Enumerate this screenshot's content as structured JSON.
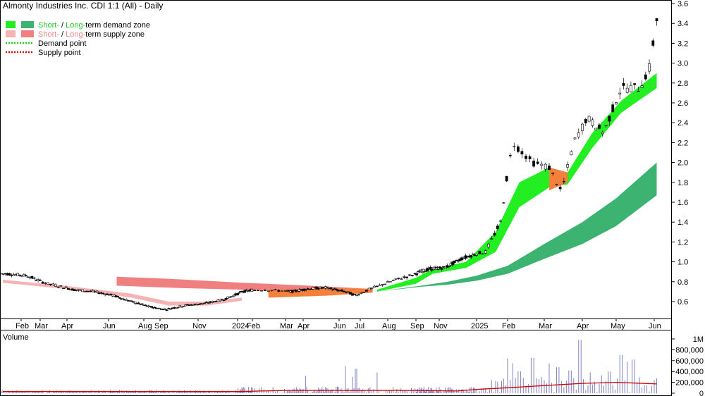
{
  "chart_data": {
    "type": "candlestick",
    "title": "Almonty Industries Inc. CDI 1:1 (All) - Daily",
    "legend": {
      "demand_zone": {
        "short": "Short-",
        "sep": " / ",
        "long": "Long-",
        "rest": "term demand zone"
      },
      "supply_zone": {
        "short": "Short-",
        "sep": " / ",
        "long": "Long-",
        "rest": "term supply zone"
      },
      "demand_point": "Demand point",
      "supply_point": "Supply point"
    },
    "colors": {
      "short_demand": "#22ee22",
      "long_demand": "#3cb371",
      "short_supply": "#f7b3b3",
      "long_supply": "#f08080",
      "transition": "#f5803c",
      "volume_bar": "#8080c0",
      "volume_ma": "#cc0000",
      "label_green": "#22cc22",
      "label_pink": "#ee8888",
      "volume_label": "#7070a0"
    },
    "price_axis": {
      "ticks": [
        "0.6",
        "0.8",
        "1.0",
        "1.2",
        "1.4",
        "1.6",
        "1.8",
        "2.0",
        "2.2",
        "2.4",
        "2.6",
        "2.8",
        "3.0",
        "3.2",
        "3.4",
        "3.6"
      ],
      "ylim": [
        0.45,
        3.6
      ]
    },
    "volume_axis": {
      "label": "Volume",
      "ticks": [
        "0",
        "200,000",
        "400,000",
        "600,000",
        "800,000",
        "1M"
      ],
      "ylim": [
        0,
        1000000
      ]
    },
    "x_labels": [
      "Feb",
      "Mar",
      "Apr",
      "Jun",
      "Aug",
      "Sep",
      "Nov",
      "2024",
      "Feb",
      "Mar",
      "Apr",
      "Jun",
      "Jul",
      "Aug",
      "Sep",
      "Nov",
      "2025",
      "Feb",
      "Mar",
      "Apr",
      "May",
      "Jun"
    ],
    "anchors": {
      "d": [
        "2023-02-01",
        "2023-03-01",
        "2023-04-01",
        "2023-06-01",
        "2023-08-01",
        "2023-09-01",
        "2023-11-01",
        "2024-01-01",
        "2024-02-01",
        "2024-03-01",
        "2024-04-01",
        "2024-06-01",
        "2024-07-01",
        "2024-08-01",
        "2024-09-01",
        "2024-11-01",
        "2025-01-01",
        "2025-02-01",
        "2025-03-01",
        "2025-04-01",
        "2025-05-01",
        "2025-06-01"
      ]
    },
    "price_key": [
      [
        "2023-01-10",
        0.88
      ],
      [
        "2023-02-10",
        0.86
      ],
      [
        "2023-03-10",
        0.78
      ],
      [
        "2023-04-10",
        0.72
      ],
      [
        "2023-05-10",
        0.7
      ],
      [
        "2023-06-10",
        0.66
      ],
      [
        "2023-07-10",
        0.6
      ],
      [
        "2023-08-10",
        0.55
      ],
      [
        "2023-09-10",
        0.52
      ],
      [
        "2023-10-10",
        0.56
      ],
      [
        "2023-11-10",
        0.58
      ],
      [
        "2023-12-10",
        0.62
      ],
      [
        "2024-01-10",
        0.7
      ],
      [
        "2024-02-10",
        0.72
      ],
      [
        "2024-03-10",
        0.7
      ],
      [
        "2024-04-10",
        0.73
      ],
      [
        "2024-05-10",
        0.74
      ],
      [
        "2024-06-10",
        0.7
      ],
      [
        "2024-06-25",
        0.66
      ],
      [
        "2024-07-10",
        0.72
      ],
      [
        "2024-08-10",
        0.82
      ],
      [
        "2024-09-10",
        0.9
      ],
      [
        "2024-10-10",
        0.93
      ],
      [
        "2024-11-10",
        0.94
      ],
      [
        "2024-12-10",
        1.04
      ],
      [
        "2025-01-10",
        1.1
      ],
      [
        "2025-01-25",
        1.4
      ],
      [
        "2025-02-05",
        2.2
      ],
      [
        "2025-02-20",
        2.0
      ],
      [
        "2025-03-05",
        1.95
      ],
      [
        "2025-03-15",
        1.7
      ],
      [
        "2025-03-25",
        2.2
      ],
      [
        "2025-04-05",
        2.45
      ],
      [
        "2025-04-20",
        2.3
      ],
      [
        "2025-05-05",
        2.75
      ],
      [
        "2025-05-20",
        2.75
      ],
      [
        "2025-05-28",
        2.95
      ],
      [
        "2025-06-03",
        3.45
      ]
    ],
    "zones": {
      "long_demand": [
        [
          "2024-07-20",
          0.7,
          0.7
        ],
        [
          "2024-09-15",
          0.75,
          0.76
        ],
        [
          "2024-11-15",
          0.77,
          0.8
        ],
        [
          "2025-01-01",
          0.81,
          0.86
        ],
        [
          "2025-02-01",
          0.88,
          0.96
        ],
        [
          "2025-03-01",
          1.03,
          1.18
        ],
        [
          "2025-04-01",
          1.18,
          1.4
        ],
        [
          "2025-05-01",
          1.36,
          1.64
        ],
        [
          "2025-06-03",
          1.67,
          2.0
        ]
      ],
      "short_demand": [
        [
          "2024-07-20",
          0.7,
          0.72
        ],
        [
          "2024-09-01",
          0.78,
          0.84
        ],
        [
          "2024-10-15",
          0.88,
          0.93
        ],
        [
          "2024-12-15",
          0.94,
          1.0
        ],
        [
          "2025-01-20",
          1.1,
          1.3
        ],
        [
          "2025-02-10",
          1.55,
          1.8
        ],
        [
          "2025-03-05",
          1.75,
          1.95
        ],
        [
          "2025-03-20",
          1.78,
          1.9
        ],
        [
          "2025-04-10",
          2.15,
          2.3
        ],
        [
          "2025-05-05",
          2.5,
          2.62
        ],
        [
          "2025-06-03",
          2.75,
          2.9
        ]
      ],
      "long_supply": [
        [
          "2023-06-15",
          0.85,
          0.76
        ],
        [
          "2023-09-15",
          0.83,
          0.74
        ],
        [
          "2024-01-10",
          0.79,
          0.72
        ],
        [
          "2024-04-10",
          0.76,
          0.7
        ],
        [
          "2024-07-10",
          0.73,
          0.7
        ]
      ],
      "short_supply": [
        [
          "2023-01-05",
          0.82,
          0.79
        ],
        [
          "2023-04-10",
          0.75,
          0.72
        ],
        [
          "2023-07-10",
          0.68,
          0.64
        ],
        [
          "2023-09-15",
          0.6,
          0.56
        ],
        [
          "2023-11-15",
          0.6,
          0.56
        ],
        [
          "2024-01-10",
          0.64,
          0.61
        ]
      ],
      "transition": [
        [
          "2024-02-15",
          0.72,
          0.64
        ],
        [
          "2024-05-15",
          0.73,
          0.66
        ],
        [
          "2024-07-15",
          0.73,
          0.69
        ]
      ],
      "transition_fall": [
        [
          "2025-03-05",
          1.95,
          1.72
        ],
        [
          "2025-03-20",
          1.9,
          1.8
        ]
      ]
    },
    "volume_ma_key": [
      [
        "2023-01-05",
        0.03
      ],
      [
        "2023-07-01",
        0.03
      ],
      [
        "2024-01-01",
        0.03
      ],
      [
        "2024-03-01",
        0.05
      ],
      [
        "2024-07-01",
        0.05
      ],
      [
        "2024-09-01",
        0.05
      ],
      [
        "2024-12-01",
        0.04
      ],
      [
        "2025-01-01",
        0.07
      ],
      [
        "2025-02-01",
        0.1
      ],
      [
        "2025-03-01",
        0.14
      ],
      [
        "2025-04-01",
        0.18
      ],
      [
        "2025-05-01",
        0.2
      ],
      [
        "2025-06-03",
        0.17
      ]
    ],
    "volume_spikes": [
      [
        "2024-06-10",
        0.5
      ],
      [
        "2024-06-25",
        0.45
      ],
      [
        "2024-07-20",
        0.38
      ],
      [
        "2024-06-20",
        0.3
      ],
      [
        "2024-04-05",
        0.32
      ],
      [
        "2025-02-01",
        0.64
      ],
      [
        "2025-02-10",
        0.4
      ],
      [
        "2025-02-05",
        0.55
      ],
      [
        "2025-02-20",
        0.65
      ],
      [
        "2025-03-05",
        0.55
      ],
      [
        "2025-03-12",
        0.48
      ],
      [
        "2025-03-22",
        0.42
      ],
      [
        "2025-03-30",
        0.98
      ],
      [
        "2025-04-08",
        0.38
      ],
      [
        "2025-04-18",
        0.33
      ],
      [
        "2025-04-25",
        0.4
      ],
      [
        "2025-05-05",
        0.7
      ],
      [
        "2025-05-10",
        0.58
      ],
      [
        "2025-05-15",
        0.62
      ],
      [
        "2025-05-25",
        0.15
      ]
    ]
  }
}
